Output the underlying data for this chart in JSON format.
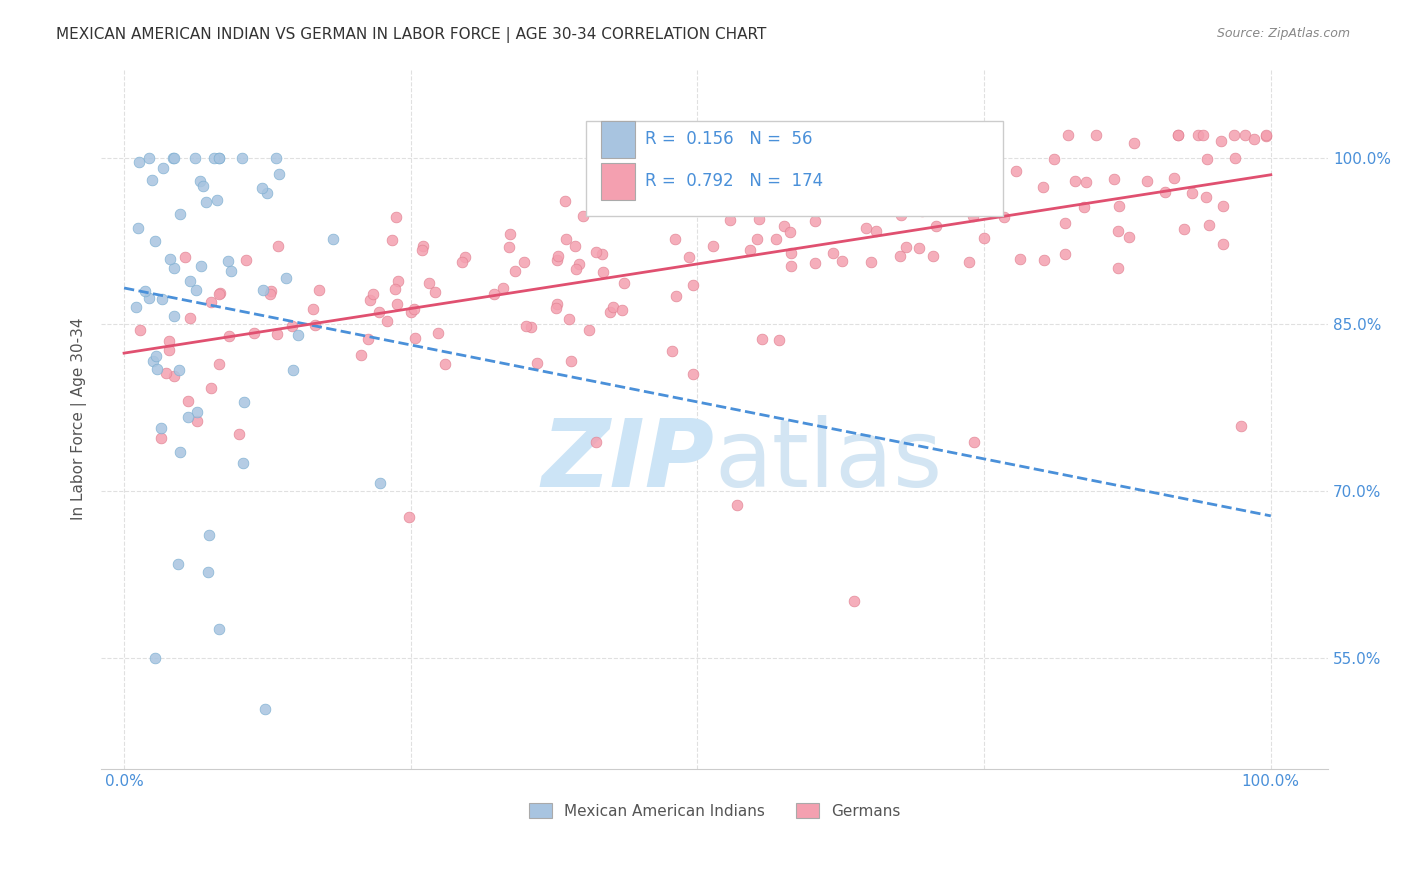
{
  "title": "MEXICAN AMERICAN INDIAN VS GERMAN IN LABOR FORCE | AGE 30-34 CORRELATION CHART",
  "source": "Source: ZipAtlas.com",
  "ylabel": "In Labor Force | Age 30-34",
  "blue_R": 0.156,
  "blue_N": 56,
  "pink_R": 0.792,
  "pink_N": 174,
  "blue_color": "#a8c4e0",
  "pink_color": "#f4a0b0",
  "blue_edge_color": "#7aadd0",
  "pink_edge_color": "#e08090",
  "blue_line_color": "#4a90d9",
  "pink_line_color": "#e05070",
  "legend_blue_label": "Mexican American Indians",
  "legend_pink_label": "Germans",
  "watermark_zip_color": "#cce4f6",
  "watermark_atlas_color": "#c8dff0",
  "title_color": "#333333",
  "axis_label_color": "#4a90d9",
  "background_color": "#ffffff",
  "grid_color": "#e0e0e0",
  "ytick_values": [
    0.55,
    0.7,
    0.85,
    1.0
  ],
  "ytick_labels": [
    "55.0%",
    "70.0%",
    "85.0%",
    "100.0%"
  ],
  "ylim": [
    0.45,
    1.08
  ],
  "xlim": [
    -0.02,
    1.05
  ]
}
